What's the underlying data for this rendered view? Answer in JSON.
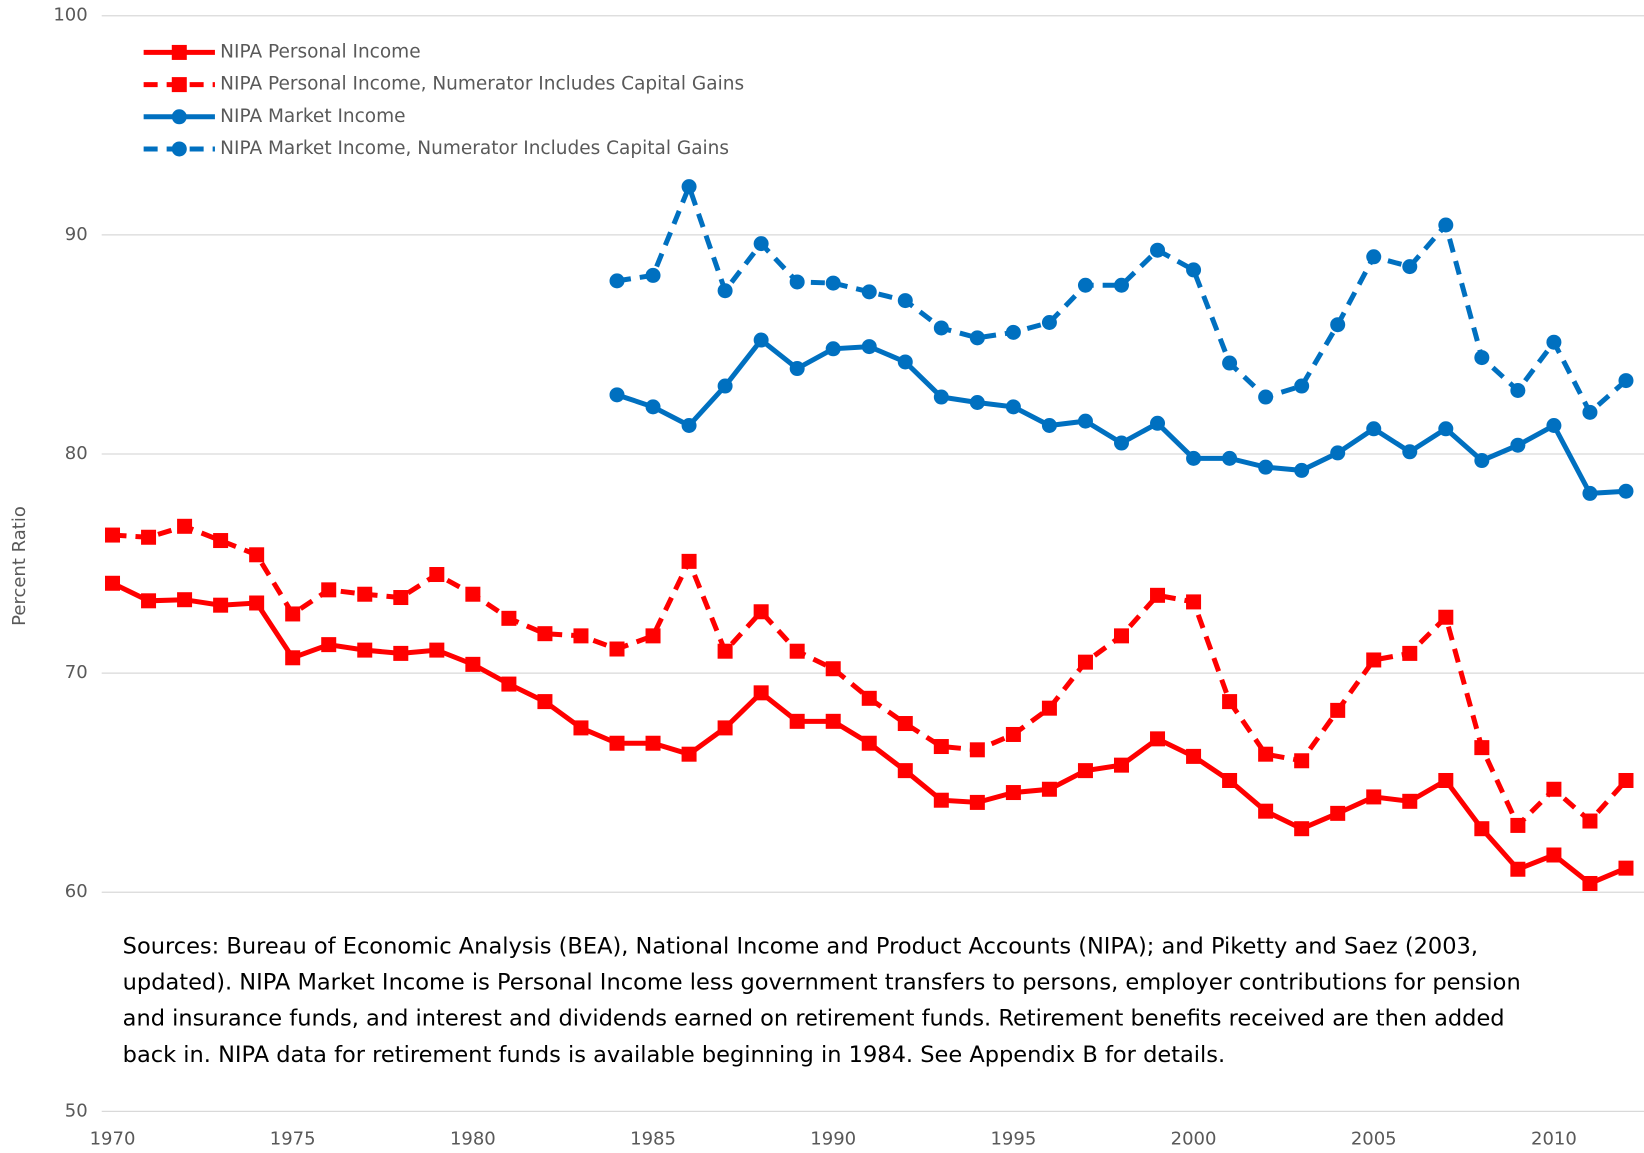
{
  "chart_data": {
    "type": "line",
    "y_label": "Percent Ratio",
    "x": [
      1970,
      1971,
      1972,
      1973,
      1974,
      1975,
      1976,
      1977,
      1978,
      1979,
      1980,
      1981,
      1982,
      1983,
      1984,
      1985,
      1986,
      1987,
      1988,
      1989,
      1990,
      1991,
      1992,
      1993,
      1994,
      1995,
      1996,
      1997,
      1998,
      1999,
      2000,
      2001,
      2002,
      2003,
      2004,
      2005,
      2006,
      2007,
      2008,
      2009,
      2010,
      2011,
      2012
    ],
    "xlim": [
      1969.7,
      2012.5
    ],
    "xticks": [
      1970,
      1975,
      1980,
      1985,
      1990,
      1995,
      2000,
      2005,
      2010
    ],
    "ylim": [
      50,
      100
    ],
    "yticks": [
      50,
      60,
      70,
      80,
      90,
      100
    ],
    "grid": true,
    "legend": "top-left",
    "series": [
      {
        "name": "NIPA Personal Income",
        "color": "#ff0000",
        "dashed": false,
        "marker": "square",
        "values": [
          74.1,
          73.3,
          73.35,
          73.1,
          73.2,
          70.7,
          71.3,
          71.05,
          70.9,
          71.05,
          70.4,
          69.5,
          68.7,
          67.5,
          66.8,
          66.8,
          66.3,
          67.5,
          69.1,
          67.8,
          67.8,
          66.8,
          65.55,
          64.2,
          64.1,
          64.55,
          64.7,
          65.55,
          65.8,
          67.0,
          66.2,
          65.1,
          63.7,
          62.9,
          63.6,
          64.35,
          64.15,
          65.1,
          62.9,
          61.05,
          61.7,
          60.4,
          61.1
        ]
      },
      {
        "name": "NIPA Personal Income, Numerator Includes Capital Gains",
        "color": "#ff0000",
        "dashed": true,
        "marker": "square",
        "values": [
          76.3,
          76.2,
          76.7,
          76.05,
          75.4,
          72.7,
          73.8,
          73.6,
          73.45,
          74.5,
          73.6,
          72.5,
          71.8,
          71.7,
          71.1,
          71.7,
          75.1,
          71.0,
          72.8,
          71.0,
          70.2,
          68.85,
          67.7,
          66.65,
          66.5,
          67.2,
          68.4,
          70.5,
          71.7,
          73.55,
          73.25,
          68.7,
          66.3,
          66.0,
          68.3,
          70.6,
          70.9,
          72.55,
          66.6,
          63.05,
          64.7,
          63.25,
          65.1
        ]
      },
      {
        "name": "NIPA Market Income",
        "color": "#0070c0",
        "dashed": false,
        "marker": "circle",
        "values": [
          null,
          null,
          null,
          null,
          null,
          null,
          null,
          null,
          null,
          null,
          null,
          null,
          null,
          null,
          82.7,
          82.15,
          81.3,
          83.1,
          85.2,
          83.9,
          84.8,
          84.9,
          84.2,
          82.6,
          82.35,
          82.15,
          81.3,
          81.5,
          80.5,
          81.4,
          79.8,
          79.8,
          79.4,
          79.25,
          80.05,
          81.15,
          80.1,
          81.15,
          79.7,
          80.4,
          81.3,
          78.2,
          78.3
        ]
      },
      {
        "name": "NIPA Market Income, Numerator Includes Capital Gains",
        "color": "#0070c0",
        "dashed": true,
        "marker": "circle",
        "values": [
          null,
          null,
          null,
          null,
          null,
          null,
          null,
          null,
          null,
          null,
          null,
          null,
          null,
          null,
          87.9,
          88.15,
          92.2,
          87.45,
          89.6,
          87.85,
          87.8,
          87.4,
          87.0,
          85.75,
          85.3,
          85.55,
          86.0,
          87.7,
          87.7,
          89.3,
          88.4,
          84.15,
          82.6,
          83.1,
          85.9,
          89.0,
          88.55,
          90.45,
          84.4,
          82.9,
          85.1,
          81.9,
          83.35
        ]
      }
    ],
    "note": [
      "Sources: Bureau of Economic Analysis (BEA), National Income and Product Accounts (NIPA); and Piketty and Saez (2003,",
      "updated). NIPA Market Income is Personal Income less government transfers to persons, employer contributions for pension",
      "and insurance funds, and interest and dividends earned on retirement funds.  Retirement benefits received are then added",
      "back in.  NIPA data for retirement funds is available beginning in 1984. See Appendix B for details."
    ]
  }
}
